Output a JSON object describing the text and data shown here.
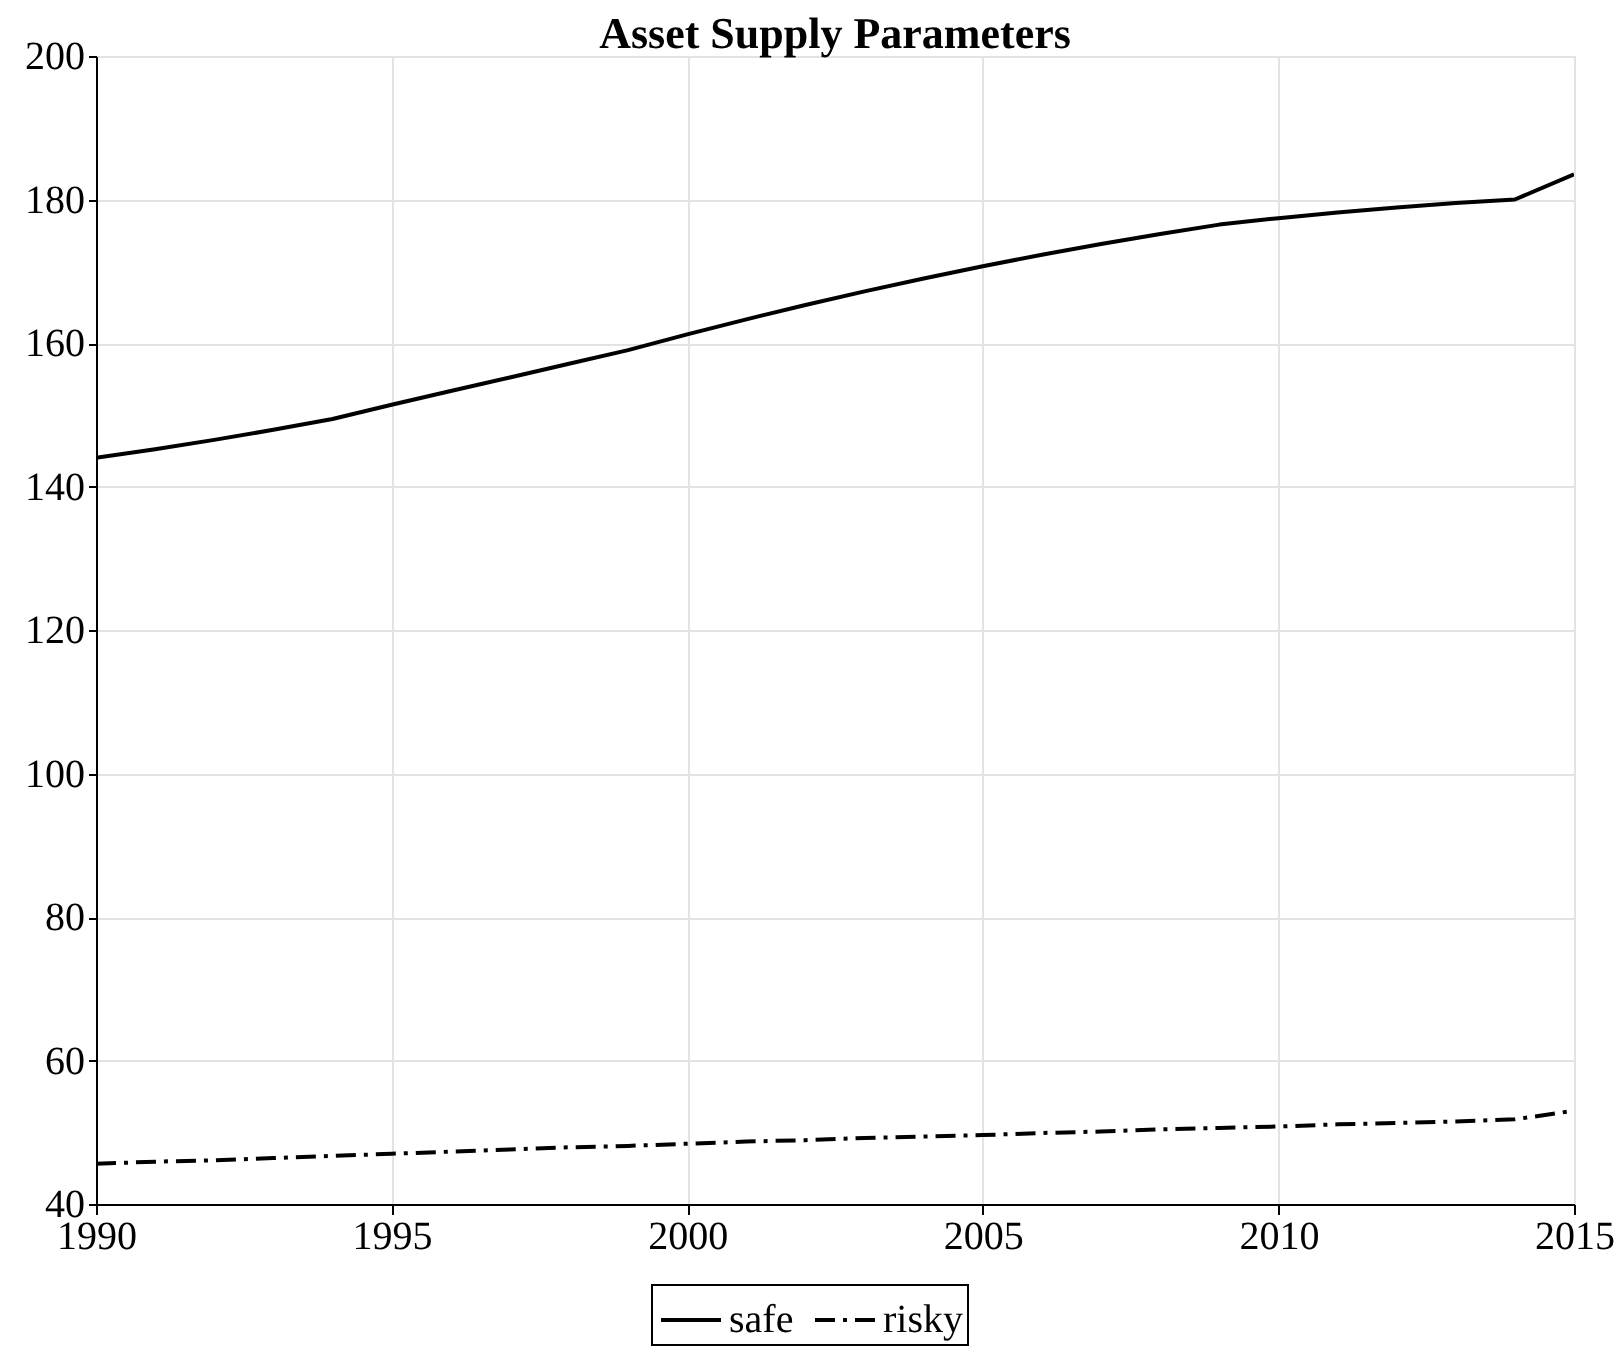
{
  "chart_data": {
    "type": "line",
    "title": "Asset Supply Parameters",
    "x": [
      1990,
      1991,
      1992,
      1993,
      1994,
      1995,
      1996,
      1997,
      1998,
      1999,
      2000,
      2001,
      2002,
      2003,
      2004,
      2005,
      2006,
      2007,
      2008,
      2009,
      2010,
      2011,
      2012,
      2013,
      2014,
      2015
    ],
    "series": [
      {
        "name": "safe",
        "color": "#000000",
        "line_style": "solid",
        "values": [
          144.0,
          145.2,
          146.5,
          147.9,
          149.4,
          151.4,
          153.3,
          155.2,
          157.1,
          159.0,
          161.2,
          163.3,
          165.3,
          167.2,
          169.0,
          170.7,
          172.3,
          173.8,
          175.2,
          176.5,
          177.4,
          178.2,
          178.9,
          179.5,
          180.0,
          183.5
        ]
      },
      {
        "name": "risky",
        "color": "#000000",
        "line_style": "dashdot",
        "values": [
          45.6,
          45.9,
          46.1,
          46.4,
          46.7,
          47.0,
          47.3,
          47.6,
          47.9,
          48.1,
          48.4,
          48.7,
          48.9,
          49.2,
          49.4,
          49.6,
          49.9,
          50.1,
          50.4,
          50.6,
          50.8,
          51.1,
          51.3,
          51.5,
          51.8,
          53.0
        ]
      }
    ],
    "xlim": [
      1990,
      2015
    ],
    "xticks": [
      1990,
      1995,
      2000,
      2005,
      2010,
      2015
    ],
    "ylim": [
      40,
      200
    ],
    "yticks": [
      40,
      60,
      80,
      100,
      120,
      140,
      160,
      180,
      200
    ],
    "grid": true,
    "legend": "bottom"
  }
}
